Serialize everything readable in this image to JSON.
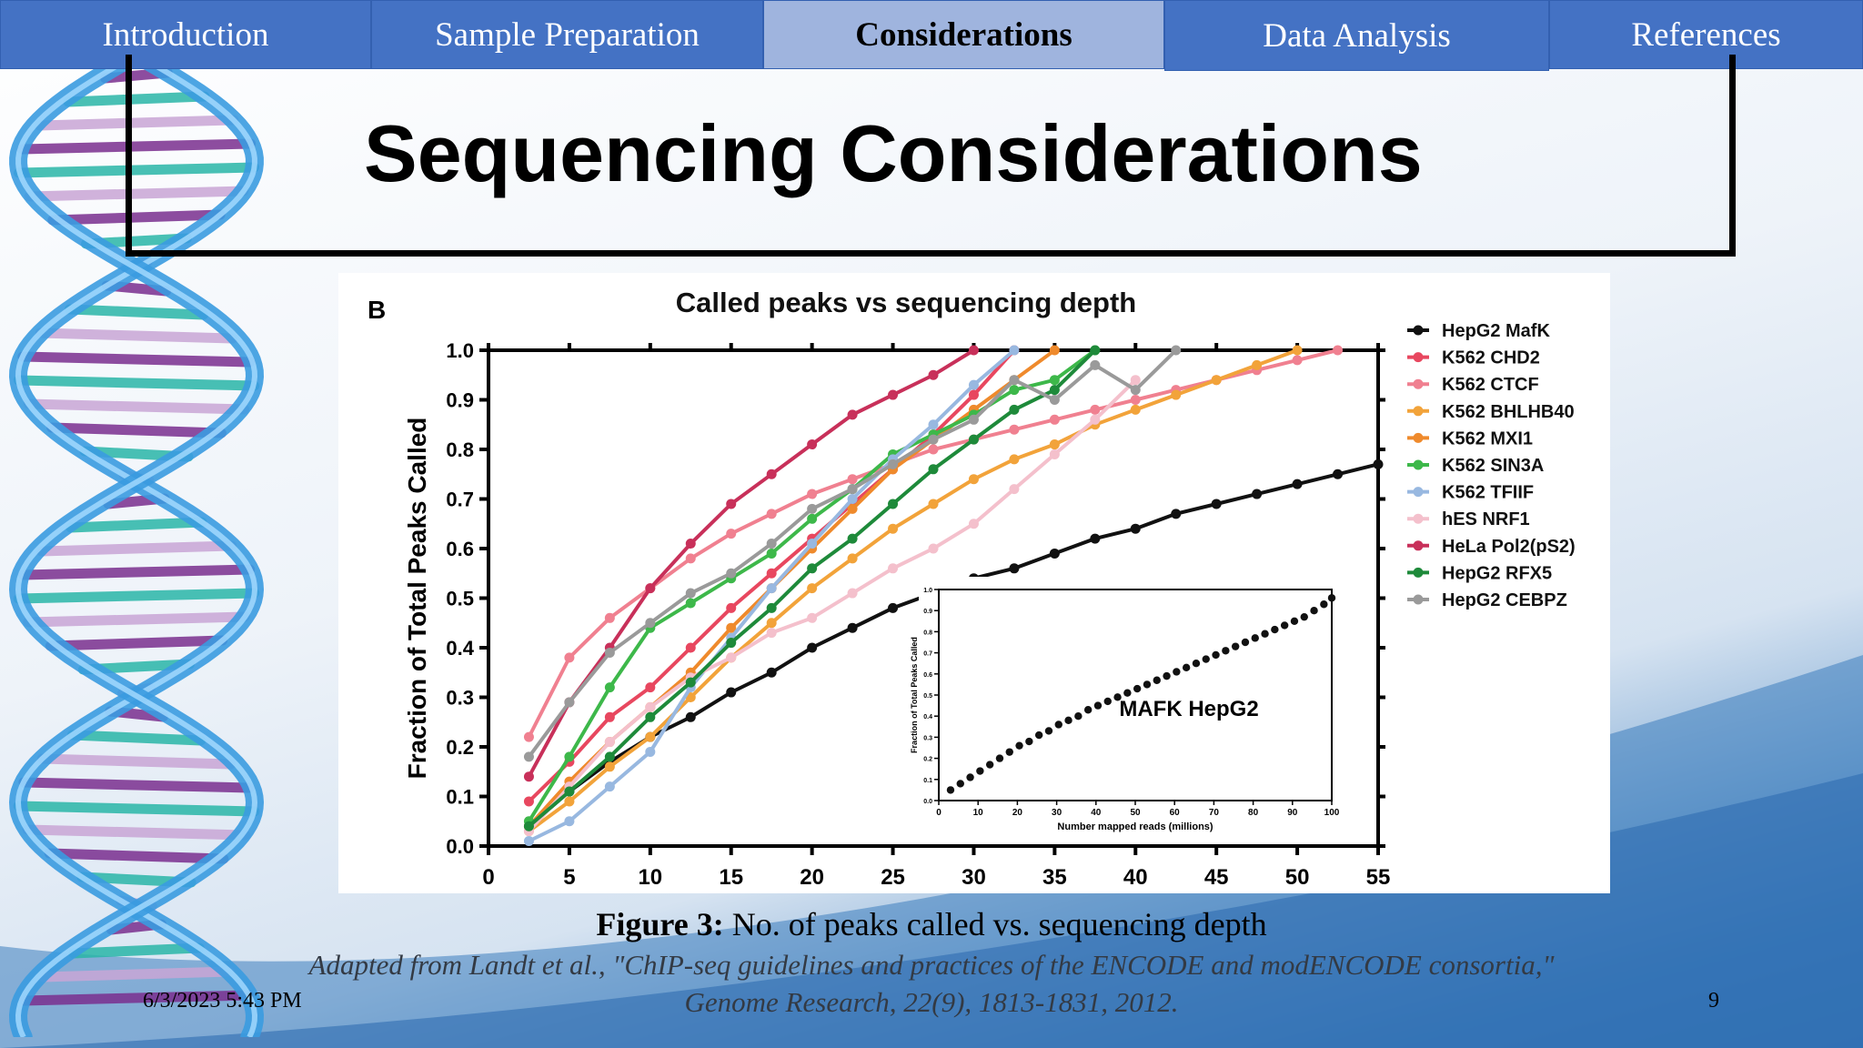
{
  "nav": {
    "tabs": [
      {
        "label": "Introduction",
        "active": false
      },
      {
        "label": "Sample Preparation",
        "active": false
      },
      {
        "label": "Considerations",
        "active": true
      },
      {
        "label": "Data Analysis",
        "active": false
      },
      {
        "label": "References",
        "active": false
      }
    ]
  },
  "slide": {
    "title": "Sequencing Considerations",
    "caption_label": "Figure 3:",
    "caption_text": " No. of peaks called vs. sequencing depth",
    "source_line1": "Adapted from Landt et al., \"ChIP-seq guidelines and practices of the ENCODE and modENCODE consortia,\"",
    "source_line2": "Genome Research, 22(9), 1813-1831, 2012.",
    "date": "6/3/2023 5:43 PM",
    "page_number": "9"
  },
  "chart_data": [
    {
      "type": "line",
      "panel_label": "B",
      "title": "Called peaks vs sequencing depth",
      "ylabel": "Fraction of Total Peaks Called",
      "xlim": [
        0,
        55
      ],
      "ylim": [
        0,
        1.0
      ],
      "xticks": [
        "0",
        "5",
        "10",
        "15",
        "20",
        "25",
        "30",
        "35",
        "40",
        "45",
        "50",
        "55"
      ],
      "yticks": [
        "0.0",
        "0.1",
        "0.2",
        "0.3",
        "0.4",
        "0.5",
        "0.6",
        "0.7",
        "0.8",
        "0.9",
        "1.0"
      ],
      "legend_position": "right",
      "series": [
        {
          "name": "HepG2 MafK",
          "color": "#111111",
          "x": [
            2.5,
            5,
            7.5,
            10,
            12.5,
            15,
            17.5,
            20,
            22.5,
            25,
            27.5,
            30,
            32.5,
            35,
            37.5,
            40,
            42.5,
            45,
            47.5,
            50,
            52.5,
            55
          ],
          "y": [
            0.04,
            0.11,
            0.17,
            0.22,
            0.26,
            0.31,
            0.35,
            0.4,
            0.44,
            0.48,
            0.51,
            0.54,
            0.56,
            0.59,
            0.62,
            0.64,
            0.67,
            0.69,
            0.71,
            0.73,
            0.75,
            0.77
          ]
        },
        {
          "name": "K562 CHD2",
          "color": "#e8475f",
          "x": [
            2.5,
            5,
            7.5,
            10,
            12.5,
            15,
            17.5,
            20,
            22.5,
            25,
            27.5,
            30,
            32.5
          ],
          "y": [
            0.09,
            0.17,
            0.26,
            0.32,
            0.4,
            0.48,
            0.55,
            0.62,
            0.69,
            0.76,
            0.83,
            0.91,
            1.0
          ]
        },
        {
          "name": "K562 CTCF",
          "color": "#f08090",
          "x": [
            2.5,
            5,
            7.5,
            10,
            12.5,
            15,
            17.5,
            20,
            22.5,
            25,
            27.5,
            30,
            32.5,
            35,
            37.5,
            40,
            42.5,
            45,
            47.5,
            50,
            52.5
          ],
          "y": [
            0.22,
            0.38,
            0.46,
            0.52,
            0.58,
            0.63,
            0.67,
            0.71,
            0.74,
            0.77,
            0.8,
            0.82,
            0.84,
            0.86,
            0.88,
            0.9,
            0.92,
            0.94,
            0.96,
            0.98,
            1.0
          ]
        },
        {
          "name": "K562 BHLHB40",
          "color": "#f2a33a",
          "x": [
            2.5,
            5,
            7.5,
            10,
            12.5,
            15,
            17.5,
            20,
            22.5,
            25,
            27.5,
            30,
            32.5,
            35,
            37.5,
            40,
            42.5,
            45,
            47.5,
            50
          ],
          "y": [
            0.03,
            0.09,
            0.16,
            0.22,
            0.3,
            0.38,
            0.45,
            0.52,
            0.58,
            0.64,
            0.69,
            0.74,
            0.78,
            0.81,
            0.85,
            0.88,
            0.91,
            0.94,
            0.97,
            1.0
          ]
        },
        {
          "name": "K562 MXI1",
          "color": "#ef8a2c",
          "x": [
            2.5,
            5,
            7.5,
            10,
            12.5,
            15,
            17.5,
            20,
            22.5,
            25,
            27.5,
            30,
            32.5,
            35
          ],
          "y": [
            0.04,
            0.13,
            0.21,
            0.28,
            0.35,
            0.44,
            0.52,
            0.6,
            0.68,
            0.76,
            0.82,
            0.88,
            0.94,
            1.0
          ]
        },
        {
          "name": "K562 SIN3A",
          "color": "#3db84a",
          "x": [
            2.5,
            5,
            7.5,
            10,
            12.5,
            15,
            17.5,
            20,
            22.5,
            25,
            27.5,
            30,
            32.5,
            35,
            37.5
          ],
          "y": [
            0.05,
            0.18,
            0.32,
            0.44,
            0.49,
            0.54,
            0.59,
            0.66,
            0.72,
            0.79,
            0.83,
            0.87,
            0.92,
            0.94,
            1.0
          ]
        },
        {
          "name": "K562 TFIIF",
          "color": "#98b8e0",
          "x": [
            2.5,
            5,
            7.5,
            10,
            12.5,
            15,
            17.5,
            20,
            22.5,
            25,
            27.5,
            30,
            32.5
          ],
          "y": [
            0.01,
            0.05,
            0.12,
            0.19,
            0.32,
            0.42,
            0.52,
            0.61,
            0.7,
            0.78,
            0.85,
            0.93,
            1.0
          ]
        },
        {
          "name": "hES NRF1",
          "color": "#f4c0cc",
          "x": [
            2.5,
            5,
            7.5,
            10,
            12.5,
            15,
            17.5,
            20,
            22.5,
            25,
            27.5,
            30,
            32.5,
            35,
            37.5,
            40
          ],
          "y": [
            0.03,
            0.12,
            0.21,
            0.28,
            0.34,
            0.38,
            0.43,
            0.46,
            0.51,
            0.56,
            0.6,
            0.65,
            0.72,
            0.79,
            0.86,
            0.94
          ]
        },
        {
          "name": "HeLa Pol2(pS2)",
          "color": "#c8305a",
          "x": [
            2.5,
            5,
            7.5,
            10,
            12.5,
            15,
            17.5,
            20,
            22.5,
            25,
            27.5,
            30
          ],
          "y": [
            0.14,
            0.29,
            0.4,
            0.52,
            0.61,
            0.69,
            0.75,
            0.81,
            0.87,
            0.91,
            0.95,
            1.0
          ]
        },
        {
          "name": "HepG2 RFX5",
          "color": "#1e8a3a",
          "x": [
            2.5,
            5,
            7.5,
            10,
            12.5,
            15,
            17.5,
            20,
            22.5,
            25,
            27.5,
            30,
            32.5,
            35,
            37.5
          ],
          "y": [
            0.04,
            0.11,
            0.18,
            0.26,
            0.33,
            0.41,
            0.48,
            0.56,
            0.62,
            0.69,
            0.76,
            0.82,
            0.88,
            0.92,
            1.0
          ]
        },
        {
          "name": "HepG2 CEBPZ",
          "color": "#9a9a9a",
          "x": [
            2.5,
            5,
            7.5,
            10,
            12.5,
            15,
            17.5,
            20,
            22.5,
            25,
            27.5,
            30,
            32.5,
            35,
            37.5,
            40,
            42.5
          ],
          "y": [
            0.18,
            0.29,
            0.39,
            0.45,
            0.51,
            0.55,
            0.61,
            0.68,
            0.72,
            0.77,
            0.82,
            0.86,
            0.94,
            0.9,
            0.97,
            0.92,
            1.0
          ]
        }
      ]
    },
    {
      "type": "scatter",
      "title": "MAFK HepG2",
      "xlabel": "Number mapped reads (millions)",
      "ylabel": "Fraction of Total Peaks Called",
      "xlim": [
        0,
        100
      ],
      "ylim": [
        0,
        1.0
      ],
      "xticks": [
        "0",
        "10",
        "20",
        "30",
        "40",
        "50",
        "60",
        "70",
        "80",
        "90",
        "100"
      ],
      "yticks": [
        "0.0",
        "0.1",
        "0.2",
        "0.3",
        "0.4",
        "0.5",
        "0.6",
        "0.7",
        "0.8",
        "0.9",
        "1.0"
      ],
      "series": [
        {
          "color": "#111111",
          "x": [
            3,
            5.5,
            8,
            10.5,
            13,
            15.5,
            18,
            20.5,
            23,
            25.5,
            28,
            30.5,
            33,
            35.5,
            38,
            40.5,
            43,
            45.5,
            48,
            50.5,
            53,
            55.5,
            58,
            60.5,
            63,
            65.5,
            68,
            70.5,
            73,
            75.5,
            78,
            80.5,
            83,
            85.5,
            88,
            90.5,
            93,
            95.5,
            98,
            100
          ],
          "y": [
            0.05,
            0.08,
            0.11,
            0.14,
            0.17,
            0.2,
            0.23,
            0.26,
            0.28,
            0.31,
            0.33,
            0.36,
            0.38,
            0.4,
            0.43,
            0.45,
            0.47,
            0.49,
            0.51,
            0.53,
            0.55,
            0.57,
            0.59,
            0.61,
            0.63,
            0.65,
            0.67,
            0.69,
            0.71,
            0.73,
            0.75,
            0.77,
            0.79,
            0.81,
            0.83,
            0.85,
            0.87,
            0.9,
            0.93,
            0.96
          ]
        }
      ]
    }
  ]
}
